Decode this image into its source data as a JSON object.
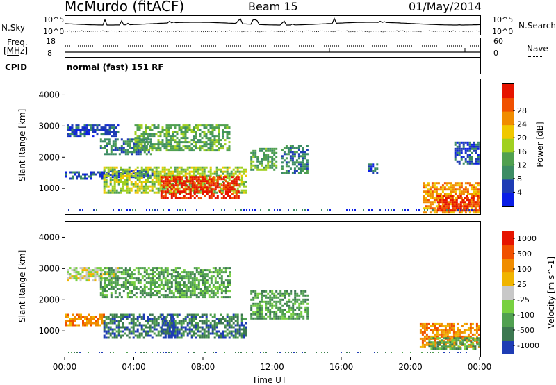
{
  "header": {
    "station": "McMurdo (fitACF)",
    "beam": "Beam 15",
    "date": "01/May/2014"
  },
  "noise_panel": {
    "left_label": "N.Sky",
    "left_ticks": [
      "10^5",
      "10^0"
    ],
    "right_ticks": [
      "10^5",
      "10^0"
    ],
    "right_label": "N.Search"
  },
  "freq_panel": {
    "left_label_1": "Freq.",
    "left_label_2": "[MHz]",
    "left_ticks": [
      "18",
      "8"
    ],
    "right_ticks": [
      "60",
      "0"
    ],
    "right_label": "Nave"
  },
  "cpid_panel": {
    "label": "CPID",
    "value": "normal (fast) 151 RF"
  },
  "chart_data": [
    {
      "type": "heatmap",
      "name": "Power",
      "ylabel": "Slant Range [km]",
      "xlabel": "Time UT",
      "xlim": [
        0,
        24
      ],
      "ylim": [
        180,
        4500
      ],
      "x_ticks": [
        "00:00",
        "04:00",
        "08:00",
        "12:00",
        "16:00",
        "20:00",
        "00:00"
      ],
      "y_ticks": [
        1000,
        2000,
        3000,
        4000
      ],
      "colorbar": {
        "label": "Power [dB]",
        "ticks": [
          "4",
          "8",
          "12",
          "16",
          "20",
          "24",
          "28"
        ],
        "colors": [
          "#0a1ee6",
          "#1e3cb4",
          "#3c8c64",
          "#50a050",
          "#a0d020",
          "#f0c800",
          "#f08c00",
          "#f05000",
          "#e61400"
        ]
      },
      "regions": [
        {
          "t0": 0.1,
          "t1": 3.0,
          "r0": 2650,
          "r1": 3050,
          "level": 1
        },
        {
          "t0": 2.0,
          "t1": 5.0,
          "r0": 2100,
          "r1": 2600,
          "level": 2
        },
        {
          "t0": 4.0,
          "t1": 9.5,
          "r0": 2200,
          "r1": 3050,
          "level": 3
        },
        {
          "t0": 0.0,
          "t1": 2.2,
          "r0": 1300,
          "r1": 1550,
          "level": 1
        },
        {
          "t0": 2.2,
          "t1": 5.0,
          "r0": 1350,
          "r1": 1600,
          "level": 1
        },
        {
          "t0": 2.2,
          "t1": 10.5,
          "r0": 850,
          "r1": 1700,
          "level": 4
        },
        {
          "t0": 5.5,
          "t1": 10.0,
          "r0": 700,
          "r1": 1400,
          "level": 8
        },
        {
          "t0": 10.7,
          "t1": 12.2,
          "r0": 1600,
          "r1": 2300,
          "level": 3
        },
        {
          "t0": 12.5,
          "t1": 14.0,
          "r0": 1500,
          "r1": 2400,
          "level": 2
        },
        {
          "t0": 17.5,
          "t1": 18.0,
          "r0": 1500,
          "r1": 1800,
          "level": 1
        },
        {
          "t0": 20.7,
          "t1": 24.0,
          "r0": 250,
          "r1": 1200,
          "level": 6
        },
        {
          "t0": 21.5,
          "t1": 24.0,
          "r0": 300,
          "r1": 800,
          "level": 8
        },
        {
          "t0": 22.5,
          "t1": 24.0,
          "r0": 1800,
          "r1": 2500,
          "level": 1
        }
      ]
    },
    {
      "type": "heatmap",
      "name": "Velocity",
      "ylabel": "Slant Range [km]",
      "xlabel": "Time UT",
      "xlim": [
        0,
        24
      ],
      "ylim": [
        180,
        4500
      ],
      "x_ticks": [
        "00:00",
        "04:00",
        "08:00",
        "12:00",
        "16:00",
        "20:00",
        "00:00"
      ],
      "y_ticks": [
        1000,
        2000,
        3000,
        4000
      ],
      "colorbar": {
        "label": "Velocity [m s^-1]",
        "ticks": [
          "1000",
          "500",
          "100",
          "25",
          "-25",
          "-100",
          "-500",
          "-1000"
        ],
        "colors": [
          "#1e3cb4",
          "#3c7850",
          "#50a050",
          "#78d040",
          "#c8c8c8",
          "#f0b400",
          "#f08c00",
          "#f05000",
          "#e61400"
        ]
      },
      "regions": [
        {
          "t0": 0.1,
          "t1": 3.0,
          "r0": 2600,
          "r1": 3050,
          "level": 4
        },
        {
          "t0": 2.0,
          "t1": 9.5,
          "r0": 2100,
          "r1": 3050,
          "level": 2
        },
        {
          "t0": 0.0,
          "t1": 2.2,
          "r0": 1150,
          "r1": 1550,
          "level": 6
        },
        {
          "t0": 2.2,
          "t1": 10.5,
          "r0": 800,
          "r1": 1550,
          "level": 1
        },
        {
          "t0": 5.5,
          "t1": 6.3,
          "r0": 800,
          "r1": 1550,
          "level": 0
        },
        {
          "t0": 10.7,
          "t1": 14.0,
          "r0": 1400,
          "r1": 2300,
          "level": 2
        },
        {
          "t0": 20.5,
          "t1": 24.0,
          "r0": 500,
          "r1": 1250,
          "level": 6
        },
        {
          "t0": 21.0,
          "t1": 24.0,
          "r0": 400,
          "r1": 800,
          "level": 2
        }
      ]
    }
  ]
}
